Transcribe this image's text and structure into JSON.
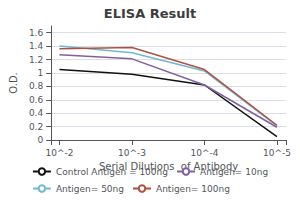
{
  "chart_data": {
    "type": "line",
    "title": "ELISA Result",
    "xlabel": "Serial Dilutions  of Antibody",
    "ylabel": "O.D.",
    "x": [
      0.01,
      0.001,
      0.0001,
      1e-05
    ],
    "series": [
      {
        "name": "Control Antigen = 100ng",
        "color": "#111111",
        "values": [
          1.05,
          0.98,
          0.82,
          0.05
        ]
      },
      {
        "name": "Antigen= 10ng",
        "color": "#8060A0",
        "values": [
          1.27,
          1.21,
          0.82,
          0.19
        ]
      },
      {
        "name": "Antigen= 50ng",
        "color": "#70B8D0",
        "values": [
          1.4,
          1.3,
          1.03,
          0.21
        ]
      },
      {
        "name": "Antigen= 100ng",
        "color": "#B05040",
        "values": [
          1.36,
          1.38,
          1.05,
          0.22
        ]
      }
    ],
    "log": "x",
    "xlim": [
      0.013,
      7.5e-06
    ],
    "xticks": [
      {
        "value": 0.01,
        "label": "10^-2"
      },
      {
        "value": 0.001,
        "label": "10^-3"
      },
      {
        "value": 0.0001,
        "label": "10^-4"
      },
      {
        "value": 1e-05,
        "label": "10^-5"
      }
    ],
    "ylim": [
      0,
      1.7
    ],
    "yticks": [
      0,
      0.2,
      0.4,
      0.6,
      0.8,
      1.0,
      1.2,
      1.4,
      1.6
    ],
    "grid": "y",
    "legend": "bottom"
  }
}
